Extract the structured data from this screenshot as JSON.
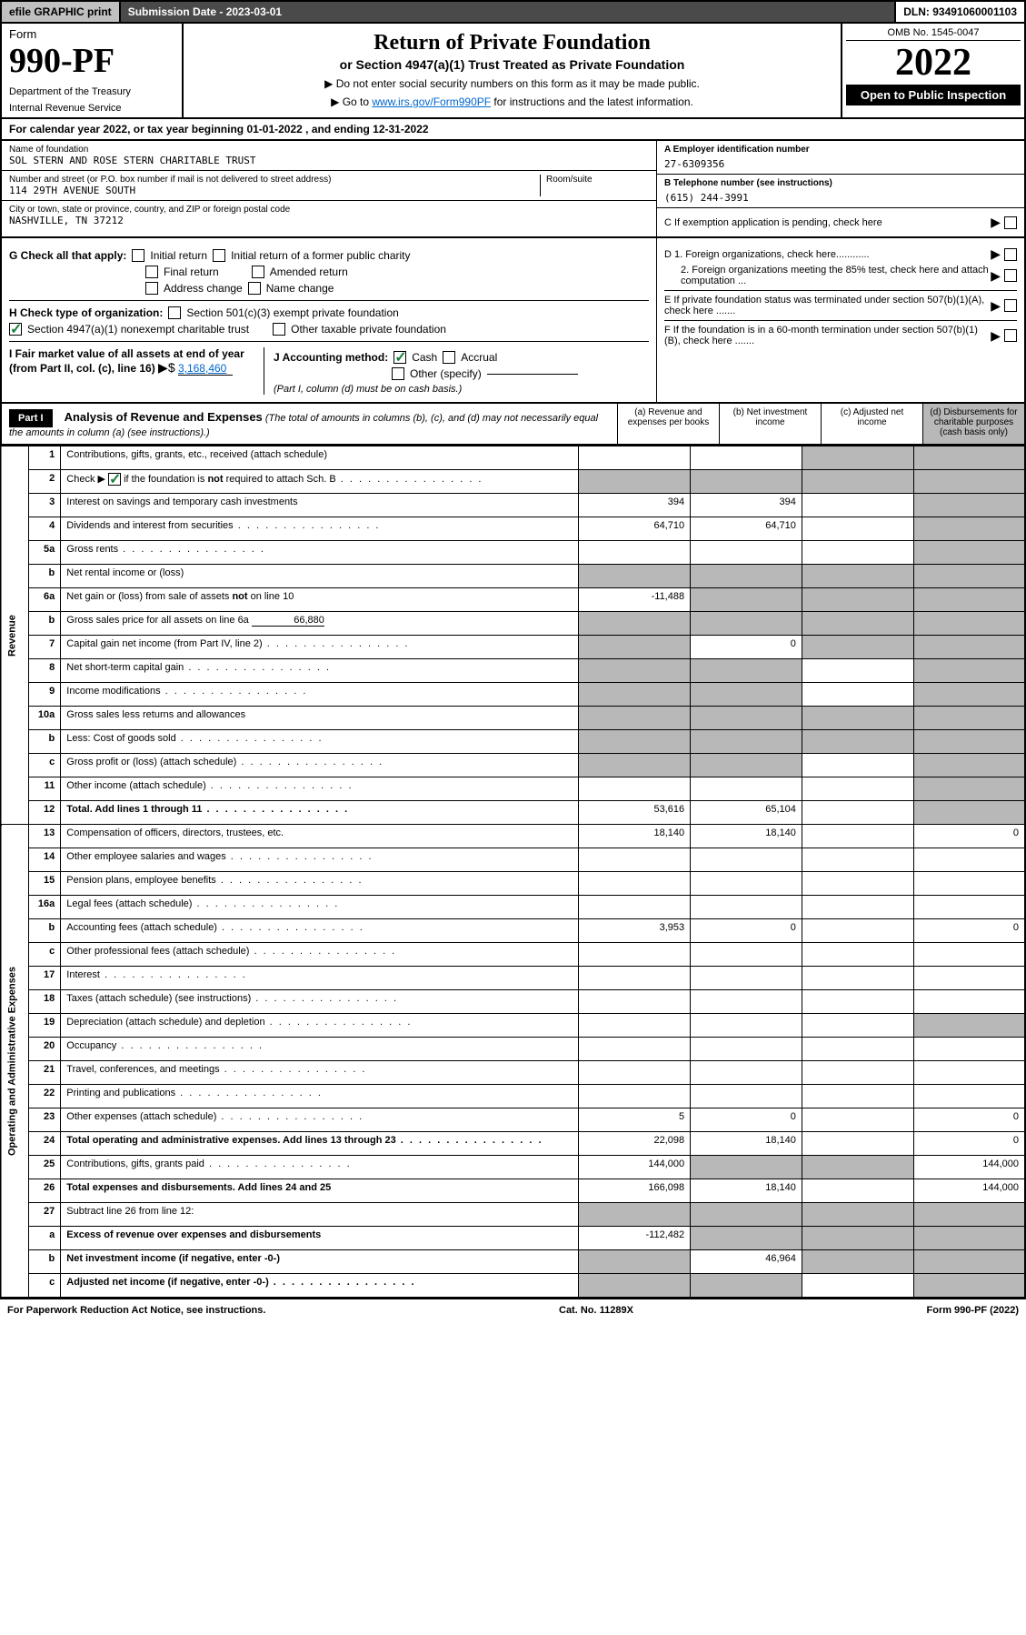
{
  "topbar": {
    "efile": "efile GRAPHIC print",
    "submission": "Submission Date - 2023-03-01",
    "dln": "DLN: 93491060001103"
  },
  "header": {
    "form_label": "Form",
    "form_num": "990-PF",
    "dept": "Department of the Treasury",
    "irs": "Internal Revenue Service",
    "title": "Return of Private Foundation",
    "subtitle": "or Section 4947(a)(1) Trust Treated as Private Foundation",
    "note1": "▶ Do not enter social security numbers on this form as it may be made public.",
    "note2_pre": "▶ Go to ",
    "note2_link": "www.irs.gov/Form990PF",
    "note2_post": " for instructions and the latest information.",
    "omb": "OMB No. 1545-0047",
    "year": "2022",
    "inspect": "Open to Public Inspection"
  },
  "calendar": "For calendar year 2022, or tax year beginning 01-01-2022                                 , and ending 12-31-2022",
  "info": {
    "name_label": "Name of foundation",
    "name": "SOL STERN AND ROSE STERN CHARITABLE TRUST",
    "addr_label": "Number and street (or P.O. box number if mail is not delivered to street address)",
    "addr": "114 29TH AVENUE SOUTH",
    "room_label": "Room/suite",
    "city_label": "City or town, state or province, country, and ZIP or foreign postal code",
    "city": "NASHVILLE, TN  37212",
    "ein_label": "A Employer identification number",
    "ein": "27-6309356",
    "phone_label": "B Telephone number (see instructions)",
    "phone": "(615) 244-3991",
    "c_label": "C If exemption application is pending, check here",
    "d1": "D 1. Foreign organizations, check here............",
    "d2": "2. Foreign organizations meeting the 85% test, check here and attach computation ...",
    "e_label": "E  If private foundation status was terminated under section 507(b)(1)(A), check here .......",
    "f_label": "F  If the foundation is in a 60-month termination under section 507(b)(1)(B), check here .......",
    "g_label": "G Check all that apply:",
    "g_opts": [
      "Initial return",
      "Initial return of a former public charity",
      "Final return",
      "Amended return",
      "Address change",
      "Name change"
    ],
    "h_label": "H Check type of organization:",
    "h_opts": [
      "Section 501(c)(3) exempt private foundation",
      "Section 4947(a)(1) nonexempt charitable trust",
      "Other taxable private foundation"
    ],
    "i_label": "I Fair market value of all assets at end of year (from Part II, col. (c), line 16)",
    "i_val": "3,168,460",
    "j_label": "J Accounting method:",
    "j_opts": [
      "Cash",
      "Accrual",
      "Other (specify)"
    ],
    "j_note": "(Part I, column (d) must be on cash basis.)"
  },
  "part1": {
    "label": "Part I",
    "title": "Analysis of Revenue and Expenses",
    "desc": " (The total of amounts in columns (b), (c), and (d) may not necessarily equal the amounts in column (a) (see instructions).)",
    "cols": [
      "(a)   Revenue and expenses per books",
      "(b)   Net investment income",
      "(c)   Adjusted net income",
      "(d)   Disbursements for charitable purposes (cash basis only)"
    ]
  },
  "sections": {
    "revenue": "Revenue",
    "expenses": "Operating and Administrative Expenses"
  },
  "rows": [
    {
      "n": "1",
      "d": "Contributions, gifts, grants, etc., received (attach schedule)",
      "a": "",
      "b": "",
      "c": "s",
      "e": "s"
    },
    {
      "n": "2",
      "d": "Check ▶ ☑ if the foundation is not required to attach Sch. B",
      "a": "s",
      "b": "s",
      "c": "s",
      "e": "s",
      "dots": true
    },
    {
      "n": "3",
      "d": "Interest on savings and temporary cash investments",
      "a": "394",
      "b": "394",
      "c": "",
      "e": "s"
    },
    {
      "n": "4",
      "d": "Dividends and interest from securities",
      "a": "64,710",
      "b": "64,710",
      "c": "",
      "e": "s",
      "dots": true
    },
    {
      "n": "5a",
      "d": "Gross rents",
      "a": "",
      "b": "",
      "c": "",
      "e": "s",
      "dots": true
    },
    {
      "n": "b",
      "d": "Net rental income or (loss)",
      "a": "s",
      "b": "s",
      "c": "s",
      "e": "s"
    },
    {
      "n": "6a",
      "d": "Net gain or (loss) from sale of assets not on line 10",
      "a": "-11,488",
      "b": "s",
      "c": "s",
      "e": "s"
    },
    {
      "n": "b",
      "d": "Gross sales price for all assets on line 6a",
      "v": "66,880",
      "a": "s",
      "b": "s",
      "c": "s",
      "e": "s"
    },
    {
      "n": "7",
      "d": "Capital gain net income (from Part IV, line 2)",
      "a": "s",
      "b": "0",
      "c": "s",
      "e": "s",
      "dots": true
    },
    {
      "n": "8",
      "d": "Net short-term capital gain",
      "a": "s",
      "b": "s",
      "c": "",
      "e": "s",
      "dots": true
    },
    {
      "n": "9",
      "d": "Income modifications",
      "a": "s",
      "b": "s",
      "c": "",
      "e": "s",
      "dots": true
    },
    {
      "n": "10a",
      "d": "Gross sales less returns and allowances",
      "a": "s",
      "b": "s",
      "c": "s",
      "e": "s"
    },
    {
      "n": "b",
      "d": "Less: Cost of goods sold",
      "a": "s",
      "b": "s",
      "c": "s",
      "e": "s",
      "dots": true
    },
    {
      "n": "c",
      "d": "Gross profit or (loss) (attach schedule)",
      "a": "s",
      "b": "s",
      "c": "",
      "e": "s",
      "dots": true
    },
    {
      "n": "11",
      "d": "Other income (attach schedule)",
      "a": "",
      "b": "",
      "c": "",
      "e": "s",
      "dots": true
    },
    {
      "n": "12",
      "d": "Total. Add lines 1 through 11",
      "a": "53,616",
      "b": "65,104",
      "c": "",
      "e": "s",
      "bold": true,
      "dots": true
    },
    {
      "n": "13",
      "d": "Compensation of officers, directors, trustees, etc.",
      "a": "18,140",
      "b": "18,140",
      "c": "",
      "e": "0"
    },
    {
      "n": "14",
      "d": "Other employee salaries and wages",
      "a": "",
      "b": "",
      "c": "",
      "e": "",
      "dots": true
    },
    {
      "n": "15",
      "d": "Pension plans, employee benefits",
      "a": "",
      "b": "",
      "c": "",
      "e": "",
      "dots": true
    },
    {
      "n": "16a",
      "d": "Legal fees (attach schedule)",
      "a": "",
      "b": "",
      "c": "",
      "e": "",
      "dots": true
    },
    {
      "n": "b",
      "d": "Accounting fees (attach schedule)",
      "a": "3,953",
      "b": "0",
      "c": "",
      "e": "0",
      "dots": true
    },
    {
      "n": "c",
      "d": "Other professional fees (attach schedule)",
      "a": "",
      "b": "",
      "c": "",
      "e": "",
      "dots": true
    },
    {
      "n": "17",
      "d": "Interest",
      "a": "",
      "b": "",
      "c": "",
      "e": "",
      "dots": true
    },
    {
      "n": "18",
      "d": "Taxes (attach schedule) (see instructions)",
      "a": "",
      "b": "",
      "c": "",
      "e": "",
      "dots": true
    },
    {
      "n": "19",
      "d": "Depreciation (attach schedule) and depletion",
      "a": "",
      "b": "",
      "c": "",
      "e": "s",
      "dots": true
    },
    {
      "n": "20",
      "d": "Occupancy",
      "a": "",
      "b": "",
      "c": "",
      "e": "",
      "dots": true
    },
    {
      "n": "21",
      "d": "Travel, conferences, and meetings",
      "a": "",
      "b": "",
      "c": "",
      "e": "",
      "dots": true
    },
    {
      "n": "22",
      "d": "Printing and publications",
      "a": "",
      "b": "",
      "c": "",
      "e": "",
      "dots": true
    },
    {
      "n": "23",
      "d": "Other expenses (attach schedule)",
      "a": "5",
      "b": "0",
      "c": "",
      "e": "0",
      "dots": true
    },
    {
      "n": "24",
      "d": "Total operating and administrative expenses. Add lines 13 through 23",
      "a": "22,098",
      "b": "18,140",
      "c": "",
      "e": "0",
      "bold": true,
      "dots": true
    },
    {
      "n": "25",
      "d": "Contributions, gifts, grants paid",
      "a": "144,000",
      "b": "s",
      "c": "s",
      "e": "144,000",
      "dots": true
    },
    {
      "n": "26",
      "d": "Total expenses and disbursements. Add lines 24 and 25",
      "a": "166,098",
      "b": "18,140",
      "c": "",
      "e": "144,000",
      "bold": true
    },
    {
      "n": "27",
      "d": "Subtract line 26 from line 12:",
      "a": "s",
      "b": "s",
      "c": "s",
      "e": "s"
    },
    {
      "n": "a",
      "d": "Excess of revenue over expenses and disbursements",
      "a": "-112,482",
      "b": "s",
      "c": "s",
      "e": "s",
      "bold": true
    },
    {
      "n": "b",
      "d": "Net investment income (if negative, enter -0-)",
      "a": "s",
      "b": "46,964",
      "c": "s",
      "e": "s",
      "bold": true
    },
    {
      "n": "c",
      "d": "Adjusted net income (if negative, enter -0-)",
      "a": "s",
      "b": "s",
      "c": "",
      "e": "s",
      "bold": true,
      "dots": true
    }
  ],
  "footer": {
    "left": "For Paperwork Reduction Act Notice, see instructions.",
    "mid": "Cat. No. 11289X",
    "right": "Form 990-PF (2022)"
  },
  "colors": {
    "shaded": "#b8b8b8",
    "darkbar": "#4a4a4a",
    "green": "#1a7f3c",
    "link": "#0066cc"
  }
}
